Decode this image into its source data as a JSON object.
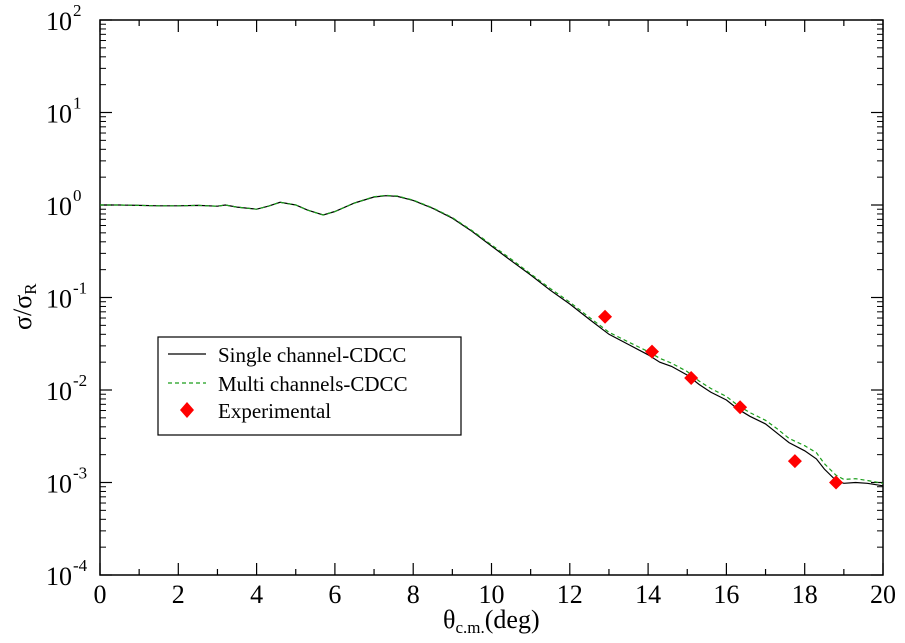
{
  "chart_data": {
    "type": "line",
    "xlabel": {
      "main": "θ",
      "sub": "c.m.",
      "suffix": "(deg)"
    },
    "ylabel": {
      "main": "σ/σ",
      "sub": "R"
    },
    "xlim": [
      0,
      20
    ],
    "ylim_log10": [
      -4,
      2
    ],
    "x_ticks": [
      0,
      2,
      4,
      6,
      8,
      10,
      12,
      14,
      16,
      18,
      20
    ],
    "x_tick_labels": [
      "0",
      "2",
      "4",
      "6",
      "8",
      "10",
      "12",
      "14",
      "16",
      "18",
      "20"
    ],
    "y_ticks": [
      {
        "base": "10",
        "exp": "2",
        "log": 2
      },
      {
        "base": "10",
        "exp": "1",
        "log": 1
      },
      {
        "base": "10",
        "exp": "0",
        "log": 0
      },
      {
        "base": "10",
        "exp": "-1",
        "log": -1
      },
      {
        "base": "10",
        "exp": "-2",
        "log": -2
      },
      {
        "base": "10",
        "exp": "-3",
        "log": -3
      },
      {
        "base": "10",
        "exp": "-4",
        "log": -4
      }
    ],
    "legend": {
      "placement": "middle-left",
      "entries": [
        {
          "label": "Single channel-CDCC",
          "style": "solid",
          "color": "#000000"
        },
        {
          "label": "Multi channels-CDCC",
          "style": "dashed",
          "color": "#1a9e1a"
        },
        {
          "label": "Experimental",
          "style": "marker",
          "color": "#ff0000"
        }
      ]
    },
    "series": [
      {
        "name": "Single channel-CDCC",
        "color": "#000000",
        "style": "solid",
        "x": [
          0,
          0.5,
          1,
          1.5,
          2,
          2.5,
          3,
          3.2,
          3.5,
          4,
          4.3,
          4.6,
          5,
          5.3,
          5.7,
          6,
          6.5,
          7,
          7.3,
          7.6,
          8,
          8.5,
          9,
          9.5,
          10,
          10.5,
          11,
          11.5,
          12,
          12.5,
          13,
          13.5,
          14,
          14.3,
          14.6,
          15,
          15.3,
          15.6,
          16,
          16.3,
          16.6,
          17,
          17.3,
          17.6,
          18,
          18.3,
          18.5,
          18.8,
          19,
          19.3,
          19.6,
          20
        ],
        "y": [
          1.0,
          1.0,
          0.99,
          0.98,
          0.98,
          0.99,
          0.97,
          1.0,
          0.95,
          0.9,
          0.97,
          1.07,
          1.0,
          0.88,
          0.78,
          0.85,
          1.05,
          1.22,
          1.26,
          1.24,
          1.12,
          0.92,
          0.72,
          0.52,
          0.36,
          0.25,
          0.175,
          0.12,
          0.085,
          0.058,
          0.04,
          0.031,
          0.024,
          0.02,
          0.018,
          0.0145,
          0.0115,
          0.0095,
          0.0078,
          0.0062,
          0.0052,
          0.0043,
          0.0034,
          0.0027,
          0.0022,
          0.0018,
          0.0014,
          0.00105,
          0.00098,
          0.001,
          0.00098,
          0.00092
        ]
      },
      {
        "name": "Multi channels-CDCC",
        "color": "#1a9e1a",
        "style": "dashed",
        "x": [
          0,
          0.5,
          1,
          1.5,
          2,
          2.5,
          3,
          3.2,
          3.5,
          4,
          4.3,
          4.6,
          5,
          5.3,
          5.7,
          6,
          6.5,
          7,
          7.3,
          7.6,
          8,
          8.5,
          9,
          9.5,
          10,
          10.5,
          11,
          11.5,
          12,
          12.5,
          13,
          13.5,
          14,
          14.3,
          14.6,
          15,
          15.3,
          15.6,
          16,
          16.3,
          16.6,
          17,
          17.3,
          17.6,
          18,
          18.3,
          18.5,
          18.8,
          19,
          19.3,
          19.6,
          20
        ],
        "y": [
          1.0,
          1.0,
          0.99,
          0.98,
          0.98,
          0.99,
          0.97,
          1.0,
          0.95,
          0.9,
          0.97,
          1.07,
          1.0,
          0.88,
          0.78,
          0.85,
          1.05,
          1.23,
          1.27,
          1.25,
          1.13,
          0.93,
          0.73,
          0.53,
          0.37,
          0.26,
          0.18,
          0.125,
          0.089,
          0.061,
          0.042,
          0.033,
          0.026,
          0.022,
          0.0195,
          0.0158,
          0.0125,
          0.0104,
          0.0085,
          0.0068,
          0.0057,
          0.0047,
          0.0038,
          0.003,
          0.0025,
          0.0021,
          0.0016,
          0.0012,
          0.00108,
          0.0011,
          0.00105,
          0.00098
        ]
      }
    ],
    "experimental": {
      "name": "Experimental",
      "color": "#ff0000",
      "x": [
        12.9,
        14.1,
        15.1,
        16.35,
        17.75,
        18.8
      ],
      "y": [
        0.062,
        0.026,
        0.0135,
        0.0065,
        0.0017,
        0.001
      ]
    }
  }
}
